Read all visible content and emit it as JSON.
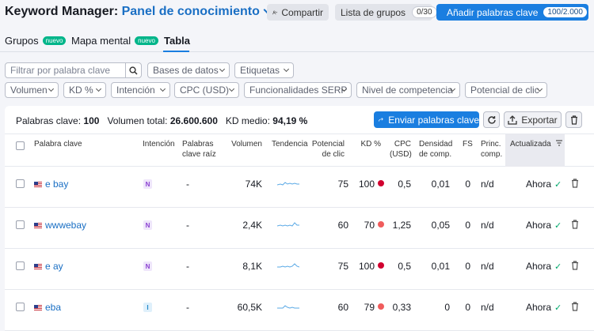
{
  "header": {
    "title_prefix": "Keyword Manager:",
    "title_link": "Panel de conocimiento",
    "share_label": "Compartir",
    "groups_label": "Lista de grupos",
    "groups_count": "0/30",
    "add_label": "Añadir palabras clave",
    "add_count": "100/2.000"
  },
  "tabs": [
    {
      "label": "Grupos",
      "badge": "nuevo"
    },
    {
      "label": "Mapa mental",
      "badge": "nuevo"
    },
    {
      "label": "Tabla",
      "badge": ""
    }
  ],
  "filters": {
    "search_placeholder": "Filtrar por palabra clave",
    "dropdowns": [
      "Bases de datos",
      "Etiquetas",
      "Volumen",
      "KD %",
      "Intención",
      "CPC (USD)",
      "Funcionalidades SERP",
      "Nivel de competencia",
      "Potencial de clic"
    ]
  },
  "summary": {
    "keywords_label": "Palabras clave:",
    "keywords_value": "100",
    "volume_label": "Volumen total:",
    "volume_value": "26.600.600",
    "kd_label": "KD medio:",
    "kd_value": "94,19 %"
  },
  "actions": {
    "send_label": "Enviar palabras clave",
    "export_label": "Exportar"
  },
  "columns": {
    "keyword": "Palabra clave",
    "intent": "Intención",
    "root1": "Palabras",
    "root2": "clave raíz",
    "volume": "Volumen",
    "trend": "Tendencia",
    "potential1": "Potencial",
    "potential2": "de clic",
    "kd": "KD %",
    "cpc1": "CPC",
    "cpc2": "(USD)",
    "density1": "Densidad",
    "density2": "de comp.",
    "fs": "FS",
    "princ1": "Princ.",
    "princ2": "comp.",
    "updated": "Actualizada"
  },
  "rows": [
    {
      "keyword": "e bay",
      "intent": "N",
      "root": "-",
      "volume": "74K",
      "potential": "75",
      "kd": "100",
      "cpc": "0,5",
      "density": "0,01",
      "fs": "0",
      "princ": "n/d",
      "updated": "Ahora"
    },
    {
      "keyword": "wwwebay",
      "intent": "N",
      "root": "-",
      "volume": "2,4K",
      "potential": "60",
      "kd": "70",
      "cpc": "1,25",
      "density": "0,05",
      "fs": "0",
      "princ": "n/d",
      "updated": "Ahora"
    },
    {
      "keyword": "e ay",
      "intent": "N",
      "root": "-",
      "volume": "8,1K",
      "potential": "75",
      "kd": "100",
      "cpc": "0,5",
      "density": "0,01",
      "fs": "0",
      "princ": "n/d",
      "updated": "Ahora"
    },
    {
      "keyword": "eba",
      "intent": "I",
      "root": "-",
      "volume": "60,5K",
      "potential": "60",
      "kd": "79",
      "cpc": "0,33",
      "density": "0",
      "fs": "0",
      "princ": "n/d",
      "updated": "Ahora"
    }
  ],
  "colors": {
    "primary": "#1a7ee0",
    "intent_n_bg": "#efe6fb",
    "intent_n_fg": "#8a3fd1",
    "intent_i_bg": "#dff0fb",
    "intent_i_fg": "#1f87c9",
    "kd_very_hard": "#d1002f",
    "kd_hard": "#f05c5c"
  },
  "icons": [
    "share-icon",
    "download-icon",
    "search-icon",
    "send-arrow-icon",
    "refresh-icon",
    "export-icon",
    "trash-icon",
    "sort-icon",
    "check-icon"
  ]
}
